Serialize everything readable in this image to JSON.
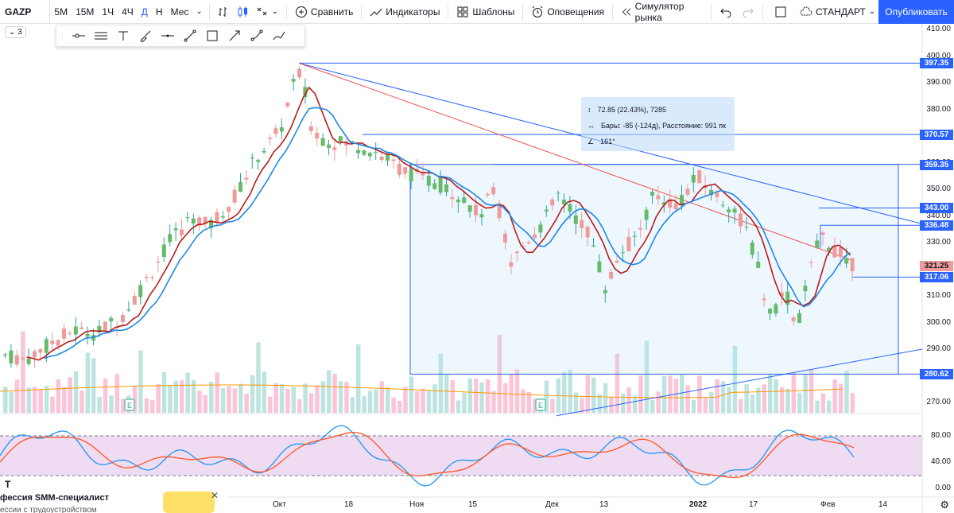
{
  "toolbar": {
    "symbol": "GAZP",
    "intervals": [
      "5М",
      "15М",
      "1Ч",
      "4Ч",
      "Д",
      "Н",
      "Мес"
    ],
    "active_interval": "Д",
    "compare_label": "Сравнить",
    "indicators_label": "Индикаторы",
    "templates_label": "Шаблоны",
    "alerts_label": "Оповещения",
    "replay_label": "Симулятор рынка",
    "layout_label": "СТАНДАРТ",
    "publish_label": "Опубликовать"
  },
  "legend_toggle": "3",
  "drawing_tools": [
    "horizontal-ray",
    "parallel-channel",
    "text",
    "brush",
    "horizontal-line",
    "trend-line",
    "rectangle",
    "arrow",
    "path",
    "pen"
  ],
  "price_axis": {
    "labels": [
      "410.00",
      "400.00",
      "390.00",
      "380.00",
      "370.00",
      "360.00",
      "350.00",
      "340.00",
      "330.00",
      "320.00",
      "310.00",
      "300.00",
      "290.00",
      "280.00",
      "270.00"
    ],
    "tags": [
      "397.35",
      "370.57",
      "359.35",
      "343.00",
      "336.48",
      "321.25",
      "317.06",
      "280.62"
    ]
  },
  "oscillator_axis": [
    "80.00",
    "40.00",
    "0.00"
  ],
  "time_axis": [
    "Окт",
    "18",
    "Ноя",
    "15",
    "Дек",
    "13",
    "2022",
    "17",
    "Фев",
    "14"
  ],
  "measure_tooltip": {
    "change": "72.85 (22.43%), 7285",
    "bars": "Бары: -85 (-124д), Расстояние: 991 пк",
    "angle": "161°"
  },
  "ad": {
    "title": "фессия SMM-специалист",
    "subtitle": "ессии с трудоустройством",
    "close": "✕",
    "logo": "Т"
  },
  "earnings_badge": "E",
  "colors": {
    "up": "#26a69a",
    "down": "#ef5350",
    "accent": "#2962ff",
    "ma_fast": "#b71c1c",
    "ma_slow": "#1e88e5",
    "osc_band": "#e1bee7"
  },
  "chart_data": {
    "type": "candlestick",
    "price_range": [
      265,
      412
    ],
    "candles": [],
    "note_levels": [
      397.35,
      370.57,
      359.35,
      343.0,
      336.48,
      321.25,
      317.06,
      280.62
    ]
  }
}
